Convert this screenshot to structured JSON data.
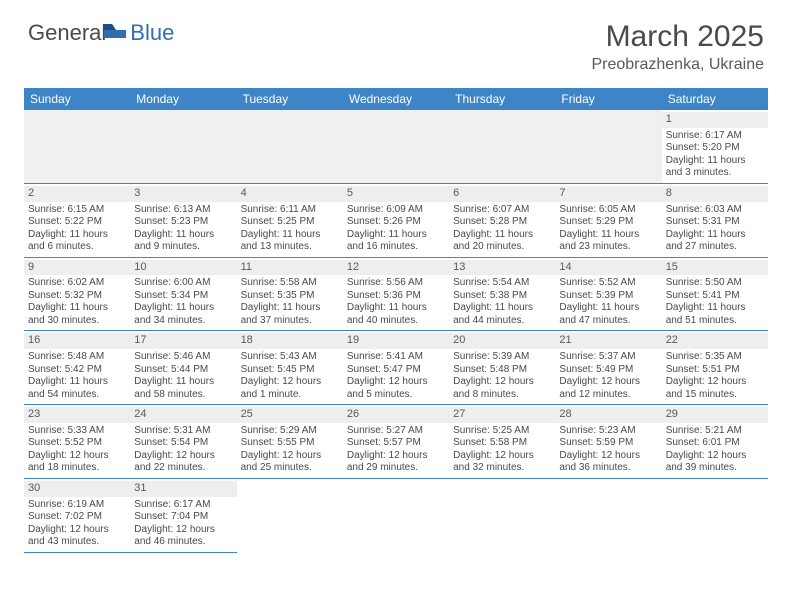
{
  "logo": {
    "textDark": "General",
    "textBlue": "Blue"
  },
  "title": {
    "month": "March 2025",
    "location": "Preobrazhenka, Ukraine"
  },
  "colors": {
    "header_bg": "#3d85c6",
    "header_text": "#ffffff",
    "border": "#3d85c6",
    "daynum_bg": "#eeeeee",
    "body_text": "#4a4a4a",
    "blank_bg": "#f0f0f0"
  },
  "weekdays": [
    "Sunday",
    "Monday",
    "Tuesday",
    "Wednesday",
    "Thursday",
    "Friday",
    "Saturday"
  ],
  "weeks": [
    [
      null,
      null,
      null,
      null,
      null,
      null,
      {
        "n": "1",
        "sr": "Sunrise: 6:17 AM",
        "ss": "Sunset: 5:20 PM",
        "d1": "Daylight: 11 hours",
        "d2": "and 3 minutes."
      }
    ],
    [
      {
        "n": "2",
        "sr": "Sunrise: 6:15 AM",
        "ss": "Sunset: 5:22 PM",
        "d1": "Daylight: 11 hours",
        "d2": "and 6 minutes."
      },
      {
        "n": "3",
        "sr": "Sunrise: 6:13 AM",
        "ss": "Sunset: 5:23 PM",
        "d1": "Daylight: 11 hours",
        "d2": "and 9 minutes."
      },
      {
        "n": "4",
        "sr": "Sunrise: 6:11 AM",
        "ss": "Sunset: 5:25 PM",
        "d1": "Daylight: 11 hours",
        "d2": "and 13 minutes."
      },
      {
        "n": "5",
        "sr": "Sunrise: 6:09 AM",
        "ss": "Sunset: 5:26 PM",
        "d1": "Daylight: 11 hours",
        "d2": "and 16 minutes."
      },
      {
        "n": "6",
        "sr": "Sunrise: 6:07 AM",
        "ss": "Sunset: 5:28 PM",
        "d1": "Daylight: 11 hours",
        "d2": "and 20 minutes."
      },
      {
        "n": "7",
        "sr": "Sunrise: 6:05 AM",
        "ss": "Sunset: 5:29 PM",
        "d1": "Daylight: 11 hours",
        "d2": "and 23 minutes."
      },
      {
        "n": "8",
        "sr": "Sunrise: 6:03 AM",
        "ss": "Sunset: 5:31 PM",
        "d1": "Daylight: 11 hours",
        "d2": "and 27 minutes."
      }
    ],
    [
      {
        "n": "9",
        "sr": "Sunrise: 6:02 AM",
        "ss": "Sunset: 5:32 PM",
        "d1": "Daylight: 11 hours",
        "d2": "and 30 minutes."
      },
      {
        "n": "10",
        "sr": "Sunrise: 6:00 AM",
        "ss": "Sunset: 5:34 PM",
        "d1": "Daylight: 11 hours",
        "d2": "and 34 minutes."
      },
      {
        "n": "11",
        "sr": "Sunrise: 5:58 AM",
        "ss": "Sunset: 5:35 PM",
        "d1": "Daylight: 11 hours",
        "d2": "and 37 minutes."
      },
      {
        "n": "12",
        "sr": "Sunrise: 5:56 AM",
        "ss": "Sunset: 5:36 PM",
        "d1": "Daylight: 11 hours",
        "d2": "and 40 minutes."
      },
      {
        "n": "13",
        "sr": "Sunrise: 5:54 AM",
        "ss": "Sunset: 5:38 PM",
        "d1": "Daylight: 11 hours",
        "d2": "and 44 minutes."
      },
      {
        "n": "14",
        "sr": "Sunrise: 5:52 AM",
        "ss": "Sunset: 5:39 PM",
        "d1": "Daylight: 11 hours",
        "d2": "and 47 minutes."
      },
      {
        "n": "15",
        "sr": "Sunrise: 5:50 AM",
        "ss": "Sunset: 5:41 PM",
        "d1": "Daylight: 11 hours",
        "d2": "and 51 minutes."
      }
    ],
    [
      {
        "n": "16",
        "sr": "Sunrise: 5:48 AM",
        "ss": "Sunset: 5:42 PM",
        "d1": "Daylight: 11 hours",
        "d2": "and 54 minutes."
      },
      {
        "n": "17",
        "sr": "Sunrise: 5:46 AM",
        "ss": "Sunset: 5:44 PM",
        "d1": "Daylight: 11 hours",
        "d2": "and 58 minutes."
      },
      {
        "n": "18",
        "sr": "Sunrise: 5:43 AM",
        "ss": "Sunset: 5:45 PM",
        "d1": "Daylight: 12 hours",
        "d2": "and 1 minute."
      },
      {
        "n": "19",
        "sr": "Sunrise: 5:41 AM",
        "ss": "Sunset: 5:47 PM",
        "d1": "Daylight: 12 hours",
        "d2": "and 5 minutes."
      },
      {
        "n": "20",
        "sr": "Sunrise: 5:39 AM",
        "ss": "Sunset: 5:48 PM",
        "d1": "Daylight: 12 hours",
        "d2": "and 8 minutes."
      },
      {
        "n": "21",
        "sr": "Sunrise: 5:37 AM",
        "ss": "Sunset: 5:49 PM",
        "d1": "Daylight: 12 hours",
        "d2": "and 12 minutes."
      },
      {
        "n": "22",
        "sr": "Sunrise: 5:35 AM",
        "ss": "Sunset: 5:51 PM",
        "d1": "Daylight: 12 hours",
        "d2": "and 15 minutes."
      }
    ],
    [
      {
        "n": "23",
        "sr": "Sunrise: 5:33 AM",
        "ss": "Sunset: 5:52 PM",
        "d1": "Daylight: 12 hours",
        "d2": "and 18 minutes."
      },
      {
        "n": "24",
        "sr": "Sunrise: 5:31 AM",
        "ss": "Sunset: 5:54 PM",
        "d1": "Daylight: 12 hours",
        "d2": "and 22 minutes."
      },
      {
        "n": "25",
        "sr": "Sunrise: 5:29 AM",
        "ss": "Sunset: 5:55 PM",
        "d1": "Daylight: 12 hours",
        "d2": "and 25 minutes."
      },
      {
        "n": "26",
        "sr": "Sunrise: 5:27 AM",
        "ss": "Sunset: 5:57 PM",
        "d1": "Daylight: 12 hours",
        "d2": "and 29 minutes."
      },
      {
        "n": "27",
        "sr": "Sunrise: 5:25 AM",
        "ss": "Sunset: 5:58 PM",
        "d1": "Daylight: 12 hours",
        "d2": "and 32 minutes."
      },
      {
        "n": "28",
        "sr": "Sunrise: 5:23 AM",
        "ss": "Sunset: 5:59 PM",
        "d1": "Daylight: 12 hours",
        "d2": "and 36 minutes."
      },
      {
        "n": "29",
        "sr": "Sunrise: 5:21 AM",
        "ss": "Sunset: 6:01 PM",
        "d1": "Daylight: 12 hours",
        "d2": "and 39 minutes."
      }
    ],
    [
      {
        "n": "30",
        "sr": "Sunrise: 6:19 AM",
        "ss": "Sunset: 7:02 PM",
        "d1": "Daylight: 12 hours",
        "d2": "and 43 minutes."
      },
      {
        "n": "31",
        "sr": "Sunrise: 6:17 AM",
        "ss": "Sunset: 7:04 PM",
        "d1": "Daylight: 12 hours",
        "d2": "and 46 minutes."
      },
      null,
      null,
      null,
      null,
      null
    ]
  ]
}
